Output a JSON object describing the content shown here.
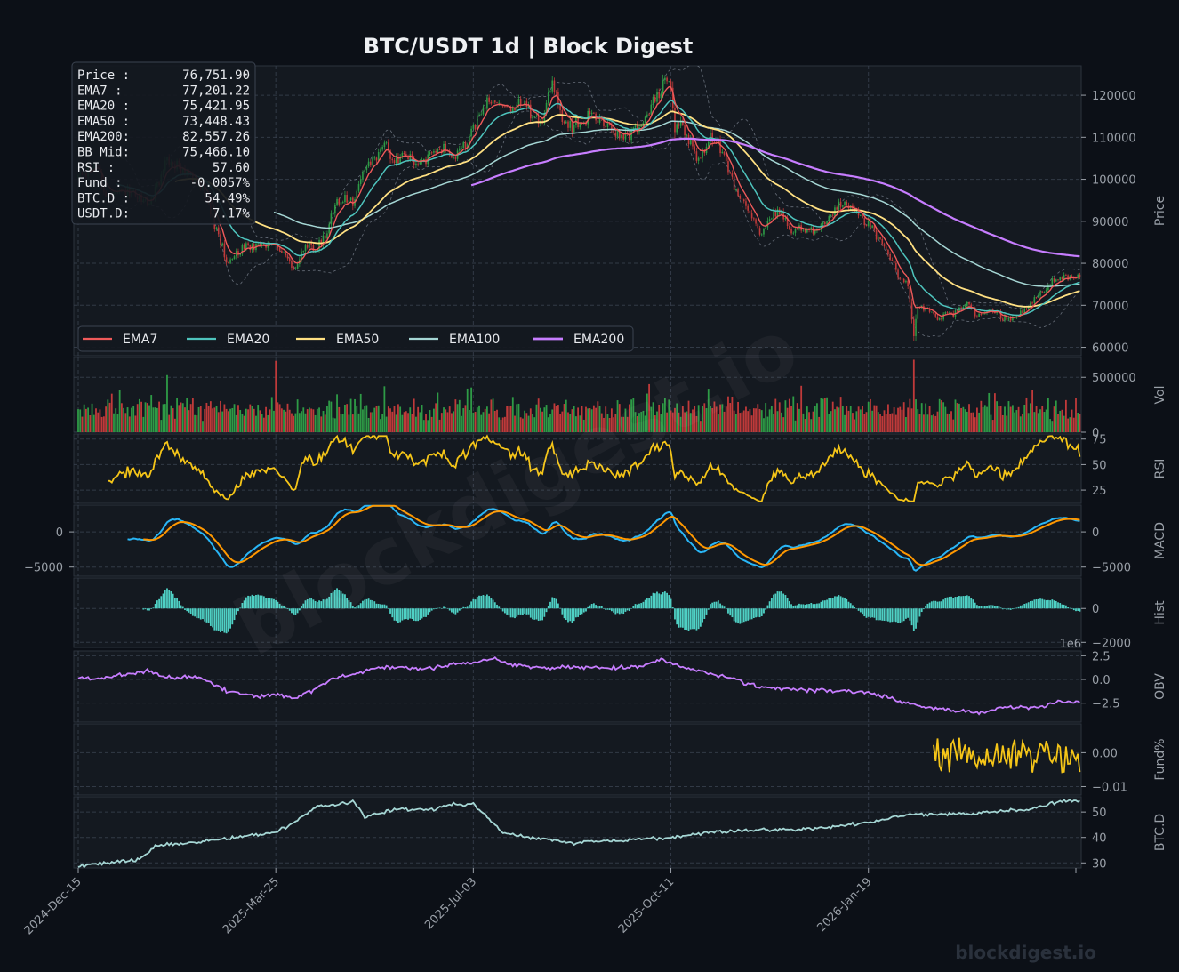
{
  "title": "BTC/USDT  1d  |  Block Digest",
  "watermark": "blockdigest.io",
  "footer_brand": "blockdigest.io",
  "colors": {
    "background": "#0c1017",
    "panel": "#141920",
    "grid": "#3a4250",
    "up_candle": "#2e9b46",
    "down_candle": "#c03a3a",
    "ema7": "#ef5a5a",
    "ema20": "#4ec4bd",
    "ema50": "#ffe082",
    "ema100": "#a5d6d4",
    "ema200": "#c77dff",
    "rsi": "#f5c518",
    "macd": "#29b6f6",
    "signal": "#ff9800",
    "hist": "#4fd1c5",
    "obv": "#c77dff",
    "funding": "#f5c518",
    "btc_dominance": "#a5d6d4"
  },
  "info_box": [
    {
      "label": "Price :",
      "value": "76,751.90"
    },
    {
      "label": "EMA7  :",
      "value": "77,201.22"
    },
    {
      "label": "EMA20 :",
      "value": "75,421.95"
    },
    {
      "label": "EMA50 :",
      "value": "73,448.43"
    },
    {
      "label": "EMA200:",
      "value": "82,557.26"
    },
    {
      "label": "BB Mid:",
      "value": "75,466.10"
    },
    {
      "label": "RSI   :",
      "value": "57.60"
    },
    {
      "label": "Fund  :",
      "value": "-0.0057%"
    },
    {
      "label": "BTC.D :",
      "value": "54.49%"
    },
    {
      "label": "USDT.D:",
      "value": "7.17%"
    }
  ],
  "legend": [
    {
      "name": "EMA7",
      "color": "#ef5a5a"
    },
    {
      "name": "EMA20",
      "color": "#4ec4bd"
    },
    {
      "name": "EMA50",
      "color": "#ffe082"
    },
    {
      "name": "EMA100",
      "color": "#a5d6d4"
    },
    {
      "name": "EMA200",
      "color": "#c77dff"
    }
  ],
  "chart_data": {
    "type": "line",
    "title": "BTC/USDT  1d  |  Block Digest",
    "x_axis": {
      "start": "2024-12-15",
      "end": "2026-05-06",
      "tick_labels": [
        "2024-Dec-15",
        "2025-Mar-25",
        "2025-Jul-03",
        "2025-Oct-11",
        "2026-Jan-19"
      ],
      "tick_days": [
        0,
        100,
        200,
        300,
        400
      ]
    },
    "panels": [
      {
        "id": "price",
        "ylabel": "Price",
        "ylim": [
          58000,
          127000
        ],
        "ticks": [
          60000,
          70000,
          80000,
          90000,
          100000,
          110000,
          120000
        ],
        "tick_labels": [
          "60000",
          "70000",
          "80000",
          "90000",
          "100000",
          "110000",
          "120000"
        ],
        "price_anchors": [
          [
            0,
            100500
          ],
          [
            8,
            104000
          ],
          [
            15,
            95500
          ],
          [
            25,
            98000
          ],
          [
            35,
            93000
          ],
          [
            45,
            104500
          ],
          [
            55,
            102000
          ],
          [
            65,
            96000
          ],
          [
            75,
            80000
          ],
          [
            85,
            84000
          ],
          [
            95,
            84500
          ],
          [
            100,
            85000
          ],
          [
            110,
            78000
          ],
          [
            115,
            84500
          ],
          [
            120,
            83500
          ],
          [
            125,
            86000
          ],
          [
            130,
            93500
          ],
          [
            135,
            96000
          ],
          [
            140,
            95000
          ],
          [
            145,
            103500
          ],
          [
            150,
            105000
          ],
          [
            155,
            108000
          ],
          [
            160,
            104500
          ],
          [
            165,
            106500
          ],
          [
            170,
            104000
          ],
          [
            175,
            104500
          ],
          [
            180,
            106000
          ],
          [
            185,
            106500
          ],
          [
            190,
            105500
          ],
          [
            195,
            108000
          ],
          [
            200,
            112000
          ],
          [
            205,
            117500
          ],
          [
            210,
            119000
          ],
          [
            215,
            117500
          ],
          [
            220,
            116500
          ],
          [
            225,
            118000
          ],
          [
            230,
            115500
          ],
          [
            235,
            114500
          ],
          [
            240,
            123500
          ],
          [
            245,
            114000
          ],
          [
            250,
            112500
          ],
          [
            255,
            113000
          ],
          [
            260,
            117000
          ],
          [
            265,
            113500
          ],
          [
            270,
            111500
          ],
          [
            275,
            109500
          ],
          [
            280,
            111000
          ],
          [
            285,
            113000
          ],
          [
            290,
            117000
          ],
          [
            295,
            122000
          ],
          [
            298,
            123500
          ],
          [
            300,
            121000
          ],
          [
            302,
            111500
          ],
          [
            305,
            113500
          ],
          [
            310,
            108500
          ],
          [
            315,
            104000
          ],
          [
            320,
            110000
          ],
          [
            325,
            108000
          ],
          [
            330,
            101000
          ],
          [
            335,
            95000
          ],
          [
            340,
            92500
          ],
          [
            345,
            87000
          ],
          [
            350,
            91000
          ],
          [
            355,
            92000
          ],
          [
            360,
            88500
          ],
          [
            365,
            87500
          ],
          [
            370,
            87500
          ],
          [
            375,
            88500
          ],
          [
            380,
            90000
          ],
          [
            385,
            94000
          ],
          [
            390,
            94500
          ],
          [
            395,
            91500
          ],
          [
            400,
            89000
          ],
          [
            405,
            85500
          ],
          [
            410,
            82500
          ],
          [
            415,
            77500
          ],
          [
            420,
            74500
          ],
          [
            423,
            63500
          ],
          [
            425,
            70000
          ],
          [
            430,
            68500
          ],
          [
            435,
            67000
          ],
          [
            440,
            68000
          ],
          [
            445,
            68500
          ],
          [
            450,
            70500
          ],
          [
            455,
            68000
          ],
          [
            460,
            68500
          ],
          [
            465,
            68000
          ],
          [
            470,
            66500
          ],
          [
            475,
            67500
          ],
          [
            480,
            69500
          ],
          [
            485,
            71500
          ],
          [
            490,
            74000
          ],
          [
            495,
            76500
          ],
          [
            500,
            76751.9
          ]
        ],
        "last_values": {
          "price": 76751.9,
          "ema7": 77201.22,
          "ema20": 75421.95,
          "ema50": 73448.43,
          "ema200": 82557.26,
          "bb_mid": 75466.1
        },
        "series": [
          "EMA7",
          "EMA20",
          "EMA50",
          "EMA100",
          "EMA200"
        ]
      },
      {
        "id": "vol",
        "ylabel": "Vol",
        "ylim": [
          0,
          680000
        ],
        "ticks": [
          0,
          500000
        ],
        "tick_labels": [
          "0",
          "500000"
        ]
      },
      {
        "id": "rsi",
        "ylabel": "RSI",
        "ylim": [
          12,
          80
        ],
        "ticks": [
          25,
          50,
          75
        ],
        "tick_labels": [
          "25",
          "50",
          "75"
        ],
        "last": 57.6
      },
      {
        "id": "macd",
        "ylabel": "MACD",
        "ylim": [
          -6300,
          3800
        ],
        "ticks": [
          -5000,
          0
        ],
        "tick_labels": [
          "−5000",
          "0"
        ]
      },
      {
        "id": "hist",
        "ylabel": "Hist",
        "ylim": [
          -2300,
          1800
        ],
        "ticks": [
          -2000,
          0
        ],
        "tick_labels": [
          "−2000",
          "0"
        ]
      },
      {
        "id": "obv",
        "ylabel": "OBV",
        "ylim": [
          -4.5,
          3.0
        ],
        "ticks": [
          -2.5,
          0.0,
          2.5
        ],
        "tick_labels": [
          "−2.5",
          "0.0",
          "2.5"
        ],
        "multiplier": "1e6"
      },
      {
        "id": "funding",
        "ylabel": "Fund%",
        "ylim": [
          -0.0125,
          0.0085
        ],
        "ticks": [
          -0.01,
          0.0
        ],
        "tick_labels": [
          "−0.01",
          "0.00"
        ],
        "start_day": 433,
        "last": -0.0057
      },
      {
        "id": "btcd",
        "ylabel": "BTC.D",
        "ylim": [
          28,
          56
        ],
        "ticks": [
          30,
          40,
          50
        ],
        "tick_labels": [
          "30",
          "40",
          "50"
        ],
        "anchors": [
          [
            0,
            29
          ],
          [
            15,
            30
          ],
          [
            30,
            31
          ],
          [
            40,
            37
          ],
          [
            60,
            38
          ],
          [
            80,
            40
          ],
          [
            100,
            42
          ],
          [
            110,
            46
          ],
          [
            120,
            52
          ],
          [
            130,
            53
          ],
          [
            140,
            54
          ],
          [
            145,
            48
          ],
          [
            160,
            51
          ],
          [
            180,
            51
          ],
          [
            190,
            53
          ],
          [
            200,
            53
          ],
          [
            215,
            42
          ],
          [
            230,
            40
          ],
          [
            250,
            38
          ],
          [
            275,
            39
          ],
          [
            300,
            40
          ],
          [
            320,
            42
          ],
          [
            340,
            43
          ],
          [
            360,
            43
          ],
          [
            380,
            44
          ],
          [
            400,
            46
          ],
          [
            420,
            49
          ],
          [
            440,
            49
          ],
          [
            460,
            50
          ],
          [
            480,
            51
          ],
          [
            500,
            54.49
          ]
        ],
        "last": 54.49
      }
    ]
  }
}
